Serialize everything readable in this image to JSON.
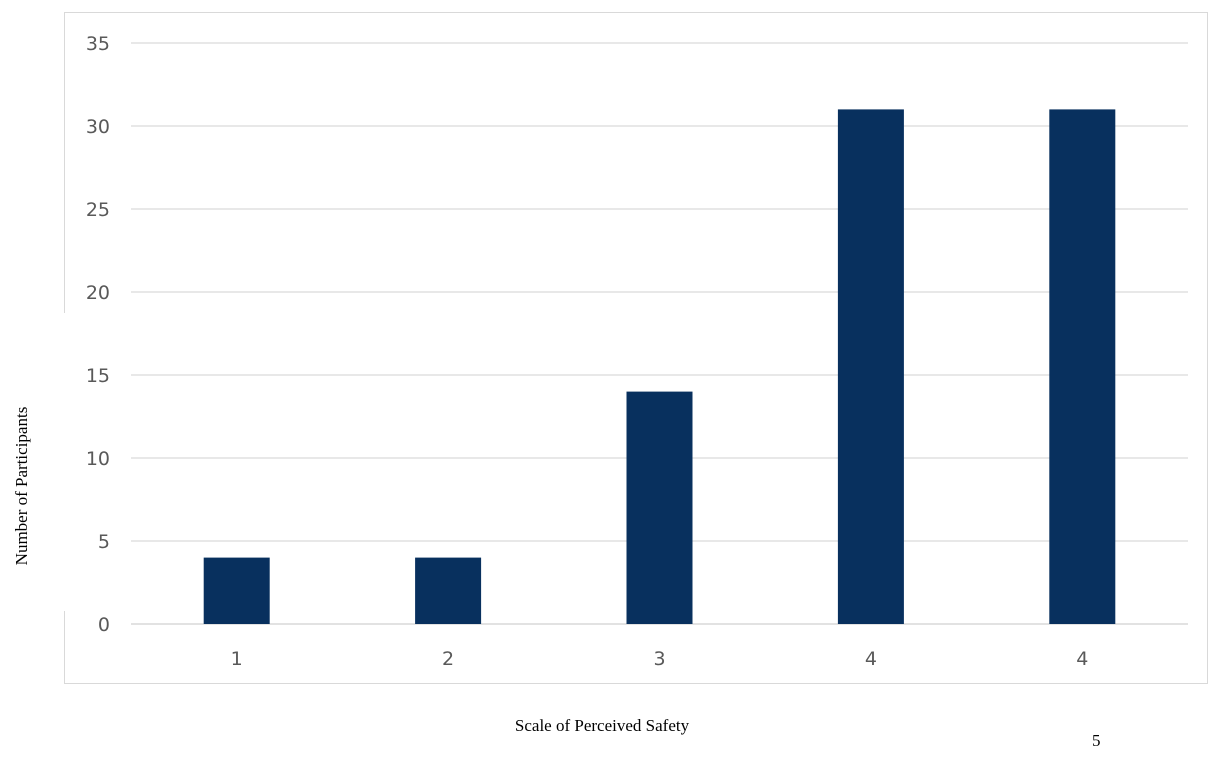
{
  "chart_data": {
    "type": "bar",
    "categories": [
      "1",
      "2",
      "3",
      "4",
      "4"
    ],
    "values": [
      4,
      4,
      14,
      31,
      31
    ],
    "xlabel": "Scale of Perceived Safety",
    "ylabel": "Number of Participants",
    "ylim": [
      0,
      35
    ],
    "yticks": [
      0,
      5,
      10,
      15,
      20,
      25,
      30,
      35
    ],
    "grid": true,
    "bar_color": "#08305e",
    "grid_color": "#d9d9d9",
    "tick_color": "#595959"
  },
  "page": {
    "number": "5"
  }
}
